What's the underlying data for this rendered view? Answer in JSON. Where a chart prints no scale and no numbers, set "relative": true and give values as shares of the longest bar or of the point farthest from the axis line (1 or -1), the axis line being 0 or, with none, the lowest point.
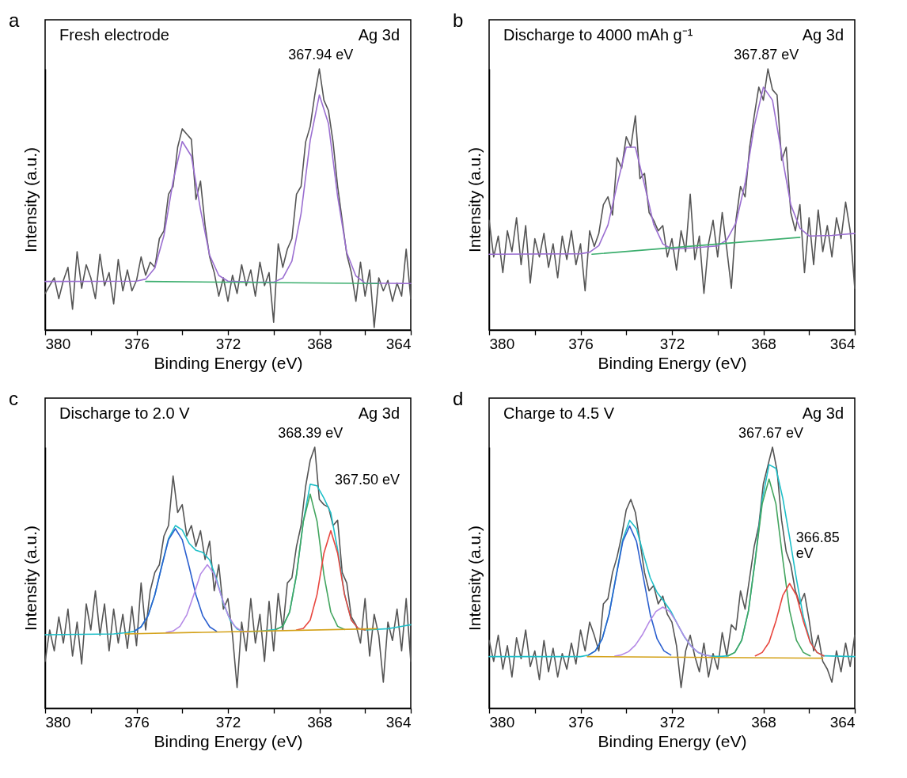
{
  "chart_data": [
    {
      "type": "line",
      "title": "a",
      "xlabel": "Binding Energy (eV)",
      "ylabel": "Intensity (a.u.)",
      "relative": true,
      "xlim": [
        380,
        364
      ],
      "xticks": [
        380,
        {
          "value": 378,
          "label": null
        },
        376,
        {
          "value": 374,
          "label": null
        },
        372,
        {
          "value": 370,
          "label": null
        },
        368,
        {
          "value": 366,
          "label": null
        },
        364
      ],
      "annotations": [
        "Fresh electrode",
        "Ag 3d",
        {
          "text": "367.94 eV",
          "x": 367.94,
          "y": 1.0
        }
      ],
      "x": [
        380,
        379.8,
        379.6,
        379.4,
        379.2,
        379,
        378.8,
        378.6,
        378.4,
        378.2,
        378,
        377.8,
        377.6,
        377.4,
        377.2,
        377,
        376.8,
        376.6,
        376.4,
        376.2,
        376,
        375.8,
        375.6,
        375.4,
        375.2,
        375,
        374.8,
        374.6,
        374.4,
        374.2,
        374,
        373.8,
        373.6,
        373.4,
        373.2,
        373,
        372.8,
        372.6,
        372.4,
        372.2,
        372,
        371.8,
        371.6,
        371.4,
        371.2,
        371,
        370.8,
        370.6,
        370.4,
        370.2,
        370,
        369.8,
        369.6,
        369.4,
        369.2,
        369,
        368.8,
        368.6,
        368.4,
        368.2,
        368,
        367.8,
        367.6,
        367.4,
        367.2,
        367,
        366.8,
        366.6,
        366.4,
        366.2,
        366,
        365.8,
        365.6,
        365.4,
        365.2,
        365,
        364.8,
        364.6,
        364.4,
        364.2,
        364
      ],
      "series": [
        {
          "color": "#555555",
          "values": [
            0.14,
            0.17,
            0.2,
            0.12,
            0.19,
            0.24,
            0.08,
            0.3,
            0.16,
            0.25,
            0.2,
            0.12,
            0.29,
            0.17,
            0.22,
            0.1,
            0.27,
            0.15,
            0.23,
            0.15,
            0.19,
            0.28,
            0.21,
            0.26,
            0.24,
            0.35,
            0.38,
            0.52,
            0.55,
            0.7,
            0.77,
            0.75,
            0.73,
            0.5,
            0.57,
            0.4,
            0.28,
            0.22,
            0.13,
            0.2,
            0.11,
            0.21,
            0.14,
            0.25,
            0.17,
            0.23,
            0.13,
            0.26,
            0.17,
            0.22,
            0.03,
            0.33,
            0.24,
            0.31,
            0.35,
            0.52,
            0.55,
            0.72,
            0.78,
            0.9,
            1.0,
            0.88,
            0.84,
            0.72,
            0.55,
            0.42,
            0.29,
            0.22,
            0.11,
            0.26,
            0.13,
            0.23,
            0.01,
            0.2,
            0.15,
            0.19,
            0.11,
            0.18,
            0.13,
            0.31,
            0.12
          ]
        },
        {
          "color": "#9b6fd1",
          "x": [
            380,
            376,
            375.6,
            375.2,
            374.8,
            374.4,
            374,
            373.6,
            373.2,
            372.8,
            372.4,
            372,
            371,
            370,
            369.6,
            369.2,
            368.8,
            368.4,
            368,
            367.6,
            367.2,
            366.8,
            366.4,
            366,
            365,
            364
          ],
          "values": [
            0.186,
            0.187,
            0.195,
            0.237,
            0.362,
            0.57,
            0.722,
            0.666,
            0.461,
            0.286,
            0.209,
            0.187,
            0.184,
            0.183,
            0.199,
            0.264,
            0.446,
            0.726,
            0.9,
            0.79,
            0.512,
            0.296,
            0.207,
            0.18,
            0.179,
            0.178
          ]
        },
        {
          "color": "#3cae6e",
          "x": [
            375.6,
            365.4
          ],
          "values": [
            0.186,
            0.178
          ]
        }
      ]
    },
    {
      "type": "line",
      "title": "b",
      "xlabel": "Binding Energy (eV)",
      "ylabel": "Intensity (a.u.)",
      "relative": true,
      "xlim": [
        380,
        364
      ],
      "xticks": [
        380,
        {
          "value": 378,
          "label": null
        },
        376,
        {
          "value": 374,
          "label": null
        },
        372,
        {
          "value": 370,
          "label": null
        },
        368,
        {
          "value": 366,
          "label": null
        },
        364
      ],
      "annotations": [
        "Discharge to 4000 mAh g⁻¹",
        "Ag 3d",
        {
          "text": "367.87 eV",
          "x": 367.87,
          "y": 1.0
        }
      ],
      "x": [
        380,
        379.8,
        379.6,
        379.4,
        379.2,
        379,
        378.8,
        378.6,
        378.4,
        378.2,
        378,
        377.8,
        377.6,
        377.4,
        377.2,
        377,
        376.8,
        376.6,
        376.4,
        376.2,
        376,
        375.8,
        375.6,
        375.4,
        375.2,
        375,
        374.8,
        374.6,
        374.4,
        374.2,
        374,
        373.8,
        373.6,
        373.4,
        373.2,
        373,
        372.8,
        372.6,
        372.4,
        372.2,
        372,
        371.8,
        371.6,
        371.4,
        371.2,
        371,
        370.8,
        370.6,
        370.4,
        370.2,
        370,
        369.8,
        369.6,
        369.4,
        369.2,
        369,
        368.8,
        368.6,
        368.4,
        368.2,
        368,
        367.8,
        367.6,
        367.4,
        367.2,
        367,
        366.8,
        366.6,
        366.4,
        366.2,
        366,
        365.8,
        365.6,
        365.4,
        365.2,
        365,
        364.8,
        364.6,
        364.4,
        364.2,
        364
      ],
      "series": [
        {
          "color": "#555555",
          "values": [
            0.42,
            0.28,
            0.36,
            0.22,
            0.38,
            0.3,
            0.43,
            0.25,
            0.4,
            0.18,
            0.35,
            0.28,
            0.37,
            0.24,
            0.33,
            0.2,
            0.36,
            0.27,
            0.38,
            0.25,
            0.33,
            0.15,
            0.38,
            0.32,
            0.37,
            0.48,
            0.51,
            0.44,
            0.66,
            0.62,
            0.74,
            0.7,
            0.82,
            0.58,
            0.6,
            0.45,
            0.42,
            0.38,
            0.4,
            0.28,
            0.35,
            0.23,
            0.38,
            0.3,
            0.52,
            0.27,
            0.36,
            0.14,
            0.33,
            0.42,
            0.28,
            0.45,
            0.31,
            0.16,
            0.42,
            0.55,
            0.51,
            0.7,
            0.82,
            0.93,
            0.88,
            1.0,
            0.92,
            0.9,
            0.65,
            0.7,
            0.45,
            0.38,
            0.48,
            0.22,
            0.43,
            0.25,
            0.46,
            0.3,
            0.4,
            0.28,
            0.43,
            0.35,
            0.49,
            0.38,
            0.16
          ]
        },
        {
          "color": "#9b6fd1",
          "x": [
            380,
            376,
            375.6,
            375.2,
            374.8,
            374.4,
            374,
            373.6,
            373.2,
            372.8,
            372.4,
            372,
            371,
            370,
            369.6,
            369.2,
            368.8,
            368.4,
            368,
            367.6,
            367.2,
            366.8,
            366.4,
            366,
            365,
            364
          ],
          "values": [
            0.29,
            0.292,
            0.298,
            0.323,
            0.402,
            0.555,
            0.7,
            0.7,
            0.556,
            0.405,
            0.33,
            0.31,
            0.315,
            0.322,
            0.345,
            0.41,
            0.562,
            0.78,
            0.93,
            0.88,
            0.675,
            0.48,
            0.39,
            0.36,
            0.362,
            0.37
          ]
        },
        {
          "color": "#3cae6e",
          "x": [
            375.5,
            366.4
          ],
          "values": [
            0.29,
            0.355
          ]
        }
      ]
    },
    {
      "type": "line",
      "title": "c",
      "xlabel": "Binding Energy (eV)",
      "ylabel": "Intensity (a.u.)",
      "relative": true,
      "xlim": [
        380,
        364
      ],
      "xticks": [
        380,
        {
          "value": 378,
          "label": null
        },
        376,
        {
          "value": 374,
          "label": null
        },
        372,
        {
          "value": 370,
          "label": null
        },
        368,
        {
          "value": 366,
          "label": null
        },
        364
      ],
      "annotations": [
        "Discharge to 2.0 V",
        "Ag 3d",
        {
          "text": "368.39 eV",
          "x": 368.39,
          "y": 1.0
        },
        "367.50 eV"
      ],
      "x": [
        380,
        379.8,
        379.6,
        379.4,
        379.2,
        379,
        378.8,
        378.6,
        378.4,
        378.2,
        378,
        377.8,
        377.6,
        377.4,
        377.2,
        377,
        376.8,
        376.6,
        376.4,
        376.2,
        376,
        375.8,
        375.6,
        375.4,
        375.2,
        375,
        374.8,
        374.6,
        374.4,
        374.2,
        374,
        373.8,
        373.6,
        373.4,
        373.2,
        373,
        372.8,
        372.6,
        372.4,
        372.2,
        372,
        371.8,
        371.6,
        371.4,
        371.2,
        371,
        370.8,
        370.6,
        370.4,
        370.2,
        370,
        369.8,
        369.6,
        369.4,
        369.2,
        369,
        368.8,
        368.6,
        368.4,
        368.2,
        368,
        367.8,
        367.6,
        367.4,
        367.2,
        367,
        366.8,
        366.6,
        366.4,
        366.2,
        366,
        365.8,
        365.6,
        365.4,
        365.2,
        365,
        364.8,
        364.6,
        364.4,
        364.2,
        364
      ],
      "series": [
        {
          "color": "#555555",
          "values": [
            0.18,
            0.3,
            0.22,
            0.35,
            0.25,
            0.38,
            0.2,
            0.33,
            0.17,
            0.4,
            0.3,
            0.45,
            0.28,
            0.4,
            0.22,
            0.38,
            0.25,
            0.36,
            0.23,
            0.39,
            0.24,
            0.48,
            0.3,
            0.45,
            0.52,
            0.55,
            0.66,
            0.7,
            0.89,
            0.75,
            0.78,
            0.66,
            0.7,
            0.62,
            0.68,
            0.57,
            0.64,
            0.45,
            0.55,
            0.38,
            0.42,
            0.28,
            0.08,
            0.33,
            0.22,
            0.42,
            0.25,
            0.36,
            0.18,
            0.41,
            0.22,
            0.44,
            0.3,
            0.48,
            0.5,
            0.62,
            0.7,
            0.85,
            0.95,
            1.0,
            0.8,
            0.78,
            0.77,
            0.7,
            0.72,
            0.52,
            0.48,
            0.35,
            0.32,
            0.25,
            0.42,
            0.2,
            0.36,
            0.28,
            0.1,
            0.33,
            0.26,
            0.38,
            0.22,
            0.42,
            0.18
          ]
        },
        {
          "color": "#1fbfc8",
          "x": [
            380,
            377,
            376.4,
            376.1,
            375.8,
            375.5,
            375.2,
            374.9,
            374.6,
            374.3,
            374,
            373.7,
            373.4,
            373.1,
            372.8,
            372.5,
            372.2,
            371.9,
            371.6,
            371.3,
            370.5,
            369.9,
            369.6,
            369.3,
            369,
            368.7,
            368.4,
            368.1,
            367.8,
            367.5,
            367.2,
            366.9,
            366.6,
            366.3,
            366,
            365,
            364
          ],
          "values": [
            0.282,
            0.285,
            0.29,
            0.295,
            0.312,
            0.354,
            0.434,
            0.544,
            0.65,
            0.7,
            0.683,
            0.632,
            0.605,
            0.597,
            0.568,
            0.495,
            0.403,
            0.337,
            0.304,
            0.293,
            0.296,
            0.302,
            0.314,
            0.369,
            0.511,
            0.716,
            0.858,
            0.852,
            0.805,
            0.749,
            0.608,
            0.438,
            0.338,
            0.306,
            0.3,
            0.305,
            0.32
          ]
        },
        {
          "color": "#2b5fcf",
          "x": [
            376.1,
            375.8,
            375.5,
            375.2,
            374.9,
            374.6,
            374.3,
            374,
            373.7,
            373.4,
            373.1,
            372.8,
            372.5
          ],
          "values": [
            0.295,
            0.312,
            0.354,
            0.434,
            0.543,
            0.646,
            0.688,
            0.646,
            0.543,
            0.434,
            0.354,
            0.312,
            0.295
          ]
        },
        {
          "color": "#b58ae6",
          "x": [
            374.7,
            374.4,
            374.1,
            373.8,
            373.5,
            373.2,
            372.9,
            372.6,
            372.3,
            372,
            371.7,
            371.4,
            371.1
          ],
          "values": [
            0.291,
            0.296,
            0.314,
            0.358,
            0.433,
            0.514,
            0.55,
            0.514,
            0.433,
            0.358,
            0.314,
            0.296,
            0.291
          ]
        },
        {
          "color": "#43a55f",
          "x": [
            369.9,
            369.6,
            369.3,
            369,
            368.7,
            368.4,
            368.1,
            367.8,
            367.5,
            367.2,
            366.9
          ],
          "values": [
            0.302,
            0.314,
            0.369,
            0.511,
            0.716,
            0.82,
            0.716,
            0.511,
            0.369,
            0.314,
            0.302
          ]
        },
        {
          "color": "#e8463e",
          "x": [
            369,
            368.7,
            368.4,
            368.1,
            367.8,
            367.5,
            367.2,
            366.9,
            366.6,
            366.3,
            366
          ],
          "values": [
            0.3,
            0.306,
            0.338,
            0.436,
            0.594,
            0.68,
            0.594,
            0.436,
            0.338,
            0.306,
            0.3
          ]
        },
        {
          "color": "#d4a21a",
          "x": [
            376.5,
            365.5
          ],
          "values": [
            0.285,
            0.305
          ]
        }
      ]
    },
    {
      "type": "line",
      "title": "d",
      "xlabel": "Binding Energy (eV)",
      "ylabel": "Intensity (a.u.)",
      "relative": true,
      "xlim": [
        380,
        364
      ],
      "xticks": [
        380,
        {
          "value": 378,
          "label": null
        },
        376,
        {
          "value": 374,
          "label": null
        },
        372,
        {
          "value": 370,
          "label": null
        },
        368,
        {
          "value": 366,
          "label": null
        },
        364
      ],
      "annotations": [
        "Charge to 4.5 V",
        "Ag 3d",
        {
          "text": "367.67 eV",
          "x": 367.67,
          "y": 1.0
        },
        {
          "text": "366.85\neV",
          "x": 366.85,
          "y": 0.6
        }
      ],
      "x": [
        380,
        379.8,
        379.6,
        379.4,
        379.2,
        379,
        378.8,
        378.6,
        378.4,
        378.2,
        378,
        377.8,
        377.6,
        377.4,
        377.2,
        377,
        376.8,
        376.6,
        376.4,
        376.2,
        376,
        375.8,
        375.6,
        375.4,
        375.2,
        375,
        374.8,
        374.6,
        374.4,
        374.2,
        374,
        373.8,
        373.6,
        373.4,
        373.2,
        373,
        372.8,
        372.6,
        372.4,
        372.2,
        372,
        371.8,
        371.6,
        371.4,
        371.2,
        371,
        370.8,
        370.6,
        370.4,
        370.2,
        370,
        369.8,
        369.6,
        369.4,
        369.2,
        369,
        368.8,
        368.6,
        368.4,
        368.2,
        368,
        367.8,
        367.6,
        367.4,
        367.2,
        367,
        366.8,
        366.6,
        366.4,
        366.2,
        366,
        365.8,
        365.6,
        365.4,
        365.2,
        365,
        364.8,
        364.6,
        364.4,
        364.2,
        364
      ],
      "series": [
        {
          "color": "#555555",
          "values": [
            0.26,
            0.18,
            0.28,
            0.15,
            0.24,
            0.12,
            0.27,
            0.19,
            0.3,
            0.16,
            0.22,
            0.11,
            0.26,
            0.14,
            0.23,
            0.12,
            0.21,
            0.15,
            0.25,
            0.17,
            0.3,
            0.22,
            0.33,
            0.28,
            0.22,
            0.4,
            0.42,
            0.52,
            0.58,
            0.66,
            0.76,
            0.8,
            0.75,
            0.64,
            0.52,
            0.45,
            0.47,
            0.4,
            0.43,
            0.36,
            0.33,
            0.24,
            0.08,
            0.22,
            0.28,
            0.2,
            0.14,
            0.25,
            0.12,
            0.21,
            0.15,
            0.29,
            0.2,
            0.32,
            0.3,
            0.45,
            0.38,
            0.5,
            0.62,
            0.7,
            0.86,
            0.93,
            1.0,
            0.91,
            0.72,
            0.6,
            0.55,
            0.45,
            0.4,
            0.44,
            0.34,
            0.22,
            0.28,
            0.18,
            0.15,
            0.1,
            0.22,
            0.14,
            0.25,
            0.16,
            0.28
          ]
        },
        {
          "color": "#1fbfc8",
          "x": [
            380,
            376,
            375.65,
            375.35,
            375.05,
            374.75,
            374.45,
            374.15,
            373.85,
            373.55,
            373.25,
            372.95,
            372.65,
            372.35,
            372.05,
            371.75,
            371.45,
            371.15,
            370.85,
            370.55,
            370.25,
            369.85,
            369.55,
            369.25,
            368.95,
            368.65,
            368.35,
            368.05,
            367.75,
            367.45,
            367.15,
            366.85,
            366.55,
            366.25,
            365.95,
            365.65,
            365.35,
            364
          ],
          "values": [
            0.198,
            0.198,
            0.204,
            0.22,
            0.267,
            0.361,
            0.504,
            0.647,
            0.72,
            0.688,
            0.592,
            0.5,
            0.444,
            0.41,
            0.372,
            0.321,
            0.273,
            0.237,
            0.214,
            0.204,
            0.2,
            0.199,
            0.201,
            0.214,
            0.26,
            0.374,
            0.574,
            0.799,
            0.933,
            0.919,
            0.805,
            0.654,
            0.494,
            0.35,
            0.256,
            0.214,
            0.201,
            0.198
          ]
        },
        {
          "color": "#2b5fcf",
          "x": [
            375.65,
            375.35,
            375.05,
            374.75,
            374.45,
            374.15,
            373.85,
            373.55,
            373.25,
            372.95,
            372.65,
            372.35,
            372.05
          ],
          "values": [
            0.204,
            0.22,
            0.266,
            0.36,
            0.501,
            0.639,
            0.698,
            0.639,
            0.501,
            0.36,
            0.266,
            0.22,
            0.204
          ]
        },
        {
          "color": "#b58ae6",
          "x": [
            374.5,
            374.2,
            373.9,
            373.6,
            373.3,
            373,
            372.7,
            372.4,
            372.1,
            371.8,
            371.5,
            371.2,
            370.9,
            370.6,
            370.3
          ],
          "values": [
            0.2,
            0.205,
            0.217,
            0.242,
            0.281,
            0.33,
            0.371,
            0.388,
            0.371,
            0.33,
            0.281,
            0.242,
            0.217,
            0.205,
            0.2
          ]
        },
        {
          "color": "#43a55f",
          "x": [
            369.55,
            369.25,
            368.95,
            368.65,
            368.35,
            368.05,
            367.75,
            367.45,
            367.15,
            366.85,
            366.55,
            366.25,
            365.95
          ],
          "values": [
            0.201,
            0.214,
            0.26,
            0.374,
            0.571,
            0.783,
            0.878,
            0.783,
            0.571,
            0.374,
            0.26,
            0.214,
            0.201
          ]
        },
        {
          "color": "#e8463e",
          "x": [
            368.35,
            368.05,
            367.75,
            367.45,
            367.15,
            366.85,
            366.55,
            366.25,
            365.95,
            365.65,
            365.35
          ],
          "values": [
            0.201,
            0.214,
            0.253,
            0.334,
            0.432,
            0.478,
            0.432,
            0.334,
            0.253,
            0.214,
            0.201
          ]
        },
        {
          "color": "#d4a21a",
          "x": [
            375.7,
            365.4
          ],
          "values": [
            0.198,
            0.192
          ]
        }
      ]
    }
  ]
}
